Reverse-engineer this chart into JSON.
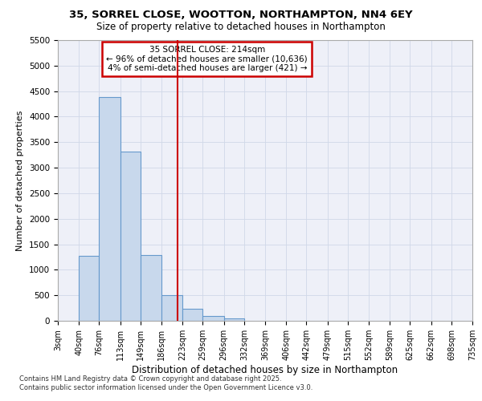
{
  "title1": "35, SORREL CLOSE, WOOTTON, NORTHAMPTON, NN4 6EY",
  "title2": "Size of property relative to detached houses in Northampton",
  "xlabel": "Distribution of detached houses by size in Northampton",
  "ylabel": "Number of detached properties",
  "bin_edges": [
    3,
    40,
    76,
    113,
    149,
    186,
    223,
    259,
    296,
    332,
    369,
    406,
    442,
    479,
    515,
    552,
    589,
    625,
    662,
    698,
    735
  ],
  "bar_heights": [
    0,
    1270,
    4380,
    3310,
    1290,
    510,
    240,
    100,
    55,
    0,
    0,
    0,
    0,
    0,
    0,
    0,
    0,
    0,
    0,
    0
  ],
  "bar_color": "#c8d8ec",
  "bar_edgecolor": "#6699cc",
  "grid_color": "#d0d8e8",
  "background_color": "#eef0f8",
  "vline_x": 214,
  "vline_color": "#cc0000",
  "annotation_text": "35 SORREL CLOSE: 214sqm\n← 96% of detached houses are smaller (10,636)\n4% of semi-detached houses are larger (421) →",
  "annotation_box_color": "#cc0000",
  "ylim": [
    0,
    5500
  ],
  "yticks": [
    0,
    500,
    1000,
    1500,
    2000,
    2500,
    3000,
    3500,
    4000,
    4500,
    5000,
    5500
  ],
  "footer1": "Contains HM Land Registry data © Crown copyright and database right 2025.",
  "footer2": "Contains public sector information licensed under the Open Government Licence v3.0.",
  "tick_labels": [
    "3sqm",
    "40sqm",
    "76sqm",
    "113sqm",
    "149sqm",
    "186sqm",
    "223sqm",
    "259sqm",
    "296sqm",
    "332sqm",
    "369sqm",
    "406sqm",
    "442sqm",
    "479sqm",
    "515sqm",
    "552sqm",
    "589sqm",
    "625sqm",
    "662sqm",
    "698sqm",
    "735sqm"
  ],
  "fig_width": 6.0,
  "fig_height": 5.0,
  "dpi": 100
}
